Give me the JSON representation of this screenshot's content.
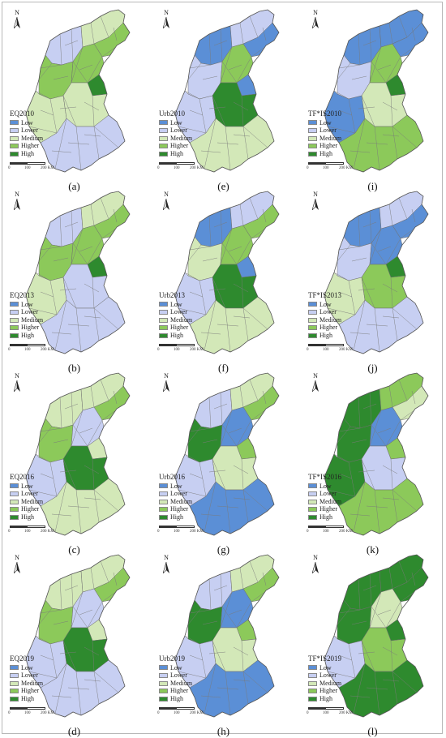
{
  "north_label": "N",
  "legend_classes": [
    "Low",
    "Lower",
    "Medium",
    "Higher",
    "High"
  ],
  "legend_colors": [
    "#5b8fd6",
    "#c7cff2",
    "#d3e8b8",
    "#8cc95a",
    "#2e8a2e"
  ],
  "scale": {
    "ticks": [
      "0",
      "100",
      "200 KM"
    ]
  },
  "panels": [
    {
      "id": "a",
      "legend_title": "EQ2010",
      "caption": "(a)",
      "palette": [
        1,
        2,
        3,
        3,
        3,
        4,
        2,
        2,
        1
      ]
    },
    {
      "id": "e",
      "legend_title": "Urb2010",
      "caption": "(e)",
      "palette": [
        0,
        1,
        0,
        1,
        3,
        0,
        1,
        4,
        2
      ]
    },
    {
      "id": "i",
      "legend_title": "TF*IS2010",
      "caption": "(i)",
      "palette": [
        0,
        0,
        0,
        1,
        3,
        4,
        0,
        2,
        3
      ]
    },
    {
      "id": "b",
      "legend_title": "EQ2013",
      "caption": "(b)",
      "palette": [
        1,
        2,
        3,
        3,
        3,
        4,
        2,
        1,
        1
      ]
    },
    {
      "id": "f",
      "legend_title": "Urb2013",
      "caption": "(f)",
      "palette": [
        0,
        1,
        3,
        2,
        3,
        0,
        1,
        4,
        2
      ]
    },
    {
      "id": "j",
      "legend_title": "TF*IS2013",
      "caption": "(j)",
      "palette": [
        0,
        1,
        0,
        1,
        0,
        4,
        2,
        3,
        1
      ]
    },
    {
      "id": "c",
      "legend_title": "EQ2016",
      "caption": "(c)",
      "palette": [
        2,
        2,
        3,
        3,
        1,
        2,
        1,
        4,
        2
      ]
    },
    {
      "id": "g",
      "legend_title": "Urb2016",
      "caption": "(g)",
      "palette": [
        1,
        2,
        3,
        4,
        0,
        3,
        1,
        2,
        0
      ]
    },
    {
      "id": "k",
      "legend_title": "TF*IS2016",
      "caption": "(k)",
      "palette": [
        4,
        3,
        2,
        4,
        0,
        3,
        4,
        1,
        3
      ]
    },
    {
      "id": "d",
      "legend_title": "EQ2019",
      "caption": "(d)",
      "palette": [
        2,
        2,
        3,
        3,
        1,
        2,
        1,
        4,
        1
      ]
    },
    {
      "id": "h",
      "legend_title": "Urb2019",
      "caption": "(h)",
      "palette": [
        1,
        2,
        3,
        4,
        0,
        3,
        1,
        2,
        0
      ]
    },
    {
      "id": "l",
      "legend_title": "TF*IS2019",
      "caption": "(l)",
      "palette": [
        4,
        4,
        4,
        4,
        2,
        4,
        1,
        3,
        4
      ]
    }
  ]
}
